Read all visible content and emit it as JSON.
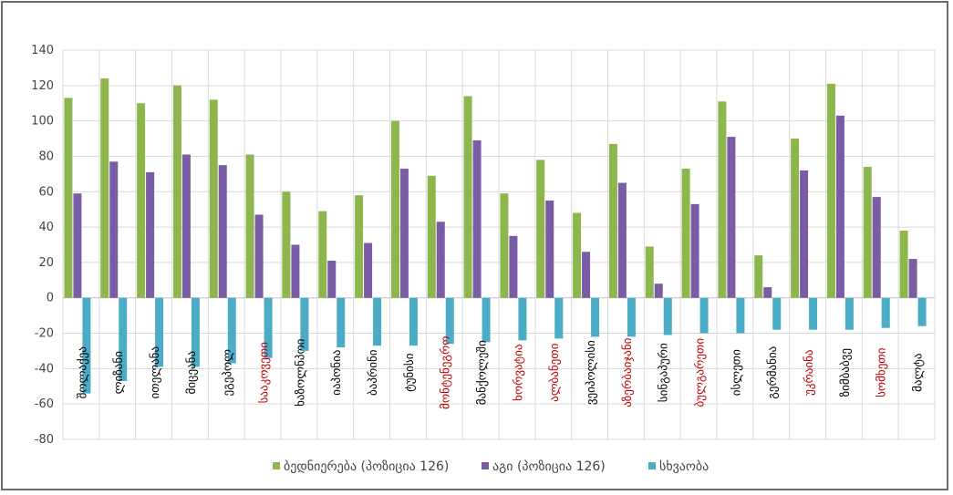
{
  "chart_data": {
    "type": "bar",
    "categories": [
      "შოლაქეა",
      "ლიზანი",
      "ითელანა",
      "მიცეანა",
      "ეგეპოლ",
      "სააკოვეთი",
      "ხაზოლნპოი",
      "იაპონია",
      "ბაპრინი",
      "ტუნისი",
      "მონტენეგრო",
      "მანქოლეში",
      "ხორვატია",
      "ალბანეთი",
      "ვეიპოლისი",
      "აზერბაიჯანი",
      "სინგაპური",
      "ბულგარეთი",
      "ისლეთი",
      "გერმანია",
      "უკრაინა",
      "ზიმბაბვე",
      "სომხეთი",
      "მალტა"
    ],
    "highlighted_categories": [
      "სააკოვეთი",
      "მონტენეგრო",
      "ხორვატია",
      "ალბანეთი",
      "აზერბაიჯანი",
      "ბულგარეთი",
      "უკრაინა",
      "სომხეთი"
    ],
    "series": [
      {
        "name": "ბედნიერება (პოზიცია 126)",
        "color": "#8db64c",
        "values": [
          113,
          124,
          110,
          120,
          112,
          81,
          60,
          49,
          58,
          100,
          69,
          114,
          59,
          78,
          48,
          87,
          29,
          73,
          111,
          24,
          90,
          121,
          74,
          38
        ]
      },
      {
        "name": "აგი (პოზიცია 126)",
        "color": "#7a5ca6",
        "values": [
          59,
          77,
          71,
          81,
          75,
          47,
          30,
          21,
          31,
          73,
          43,
          89,
          35,
          55,
          26,
          65,
          8,
          53,
          91,
          6,
          72,
          103,
          57,
          22
        ]
      },
      {
        "name": "სხვაობა",
        "color": "#4bacc6",
        "values": [
          -54,
          -47,
          -39,
          -39,
          -37,
          -34,
          -30,
          -28,
          -27,
          -27,
          -26,
          -25,
          -24,
          -23,
          -22,
          -22,
          -21,
          -20,
          -20,
          -18,
          -18,
          -18,
          -17,
          -16
        ]
      }
    ],
    "ylim": [
      -80,
      140
    ],
    "yticks": [
      -80,
      -60,
      -40,
      -20,
      0,
      20,
      40,
      60,
      80,
      100,
      120,
      140
    ],
    "grid": true,
    "legend_position": "bottom",
    "label_color": "#000000",
    "highlight_color": "#c00000"
  }
}
